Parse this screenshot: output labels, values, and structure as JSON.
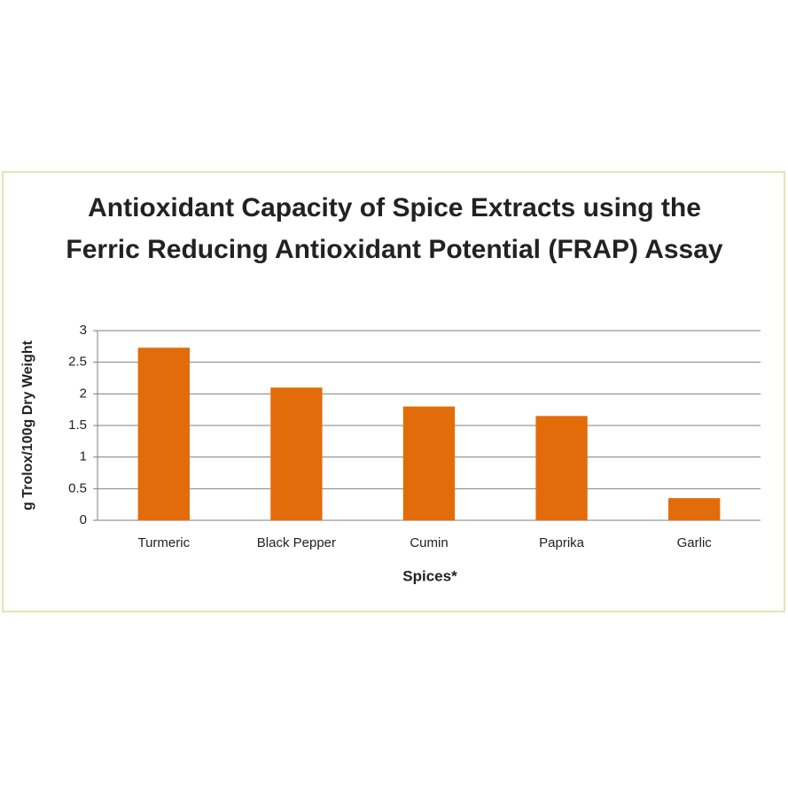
{
  "chart_data": {
    "type": "bar",
    "title": "Antioxidant Capacity of Spice Extracts using the Ferric Reducing Antioxidant Potential (FRAP) Assay",
    "x_label": "Spices*",
    "y_label": "g Trolox/100g  Dry Weight",
    "categories": [
      "Turmeric",
      "Black Pepper",
      "Cumin",
      "Paprika",
      "Garlic"
    ],
    "values": [
      2.73,
      2.1,
      1.8,
      1.65,
      0.35
    ],
    "color": "#e36c0a",
    "ylim": [
      0,
      3
    ],
    "yticks": [
      0,
      0.5,
      1,
      1.5,
      2,
      2.5,
      3
    ],
    "grid": true
  }
}
